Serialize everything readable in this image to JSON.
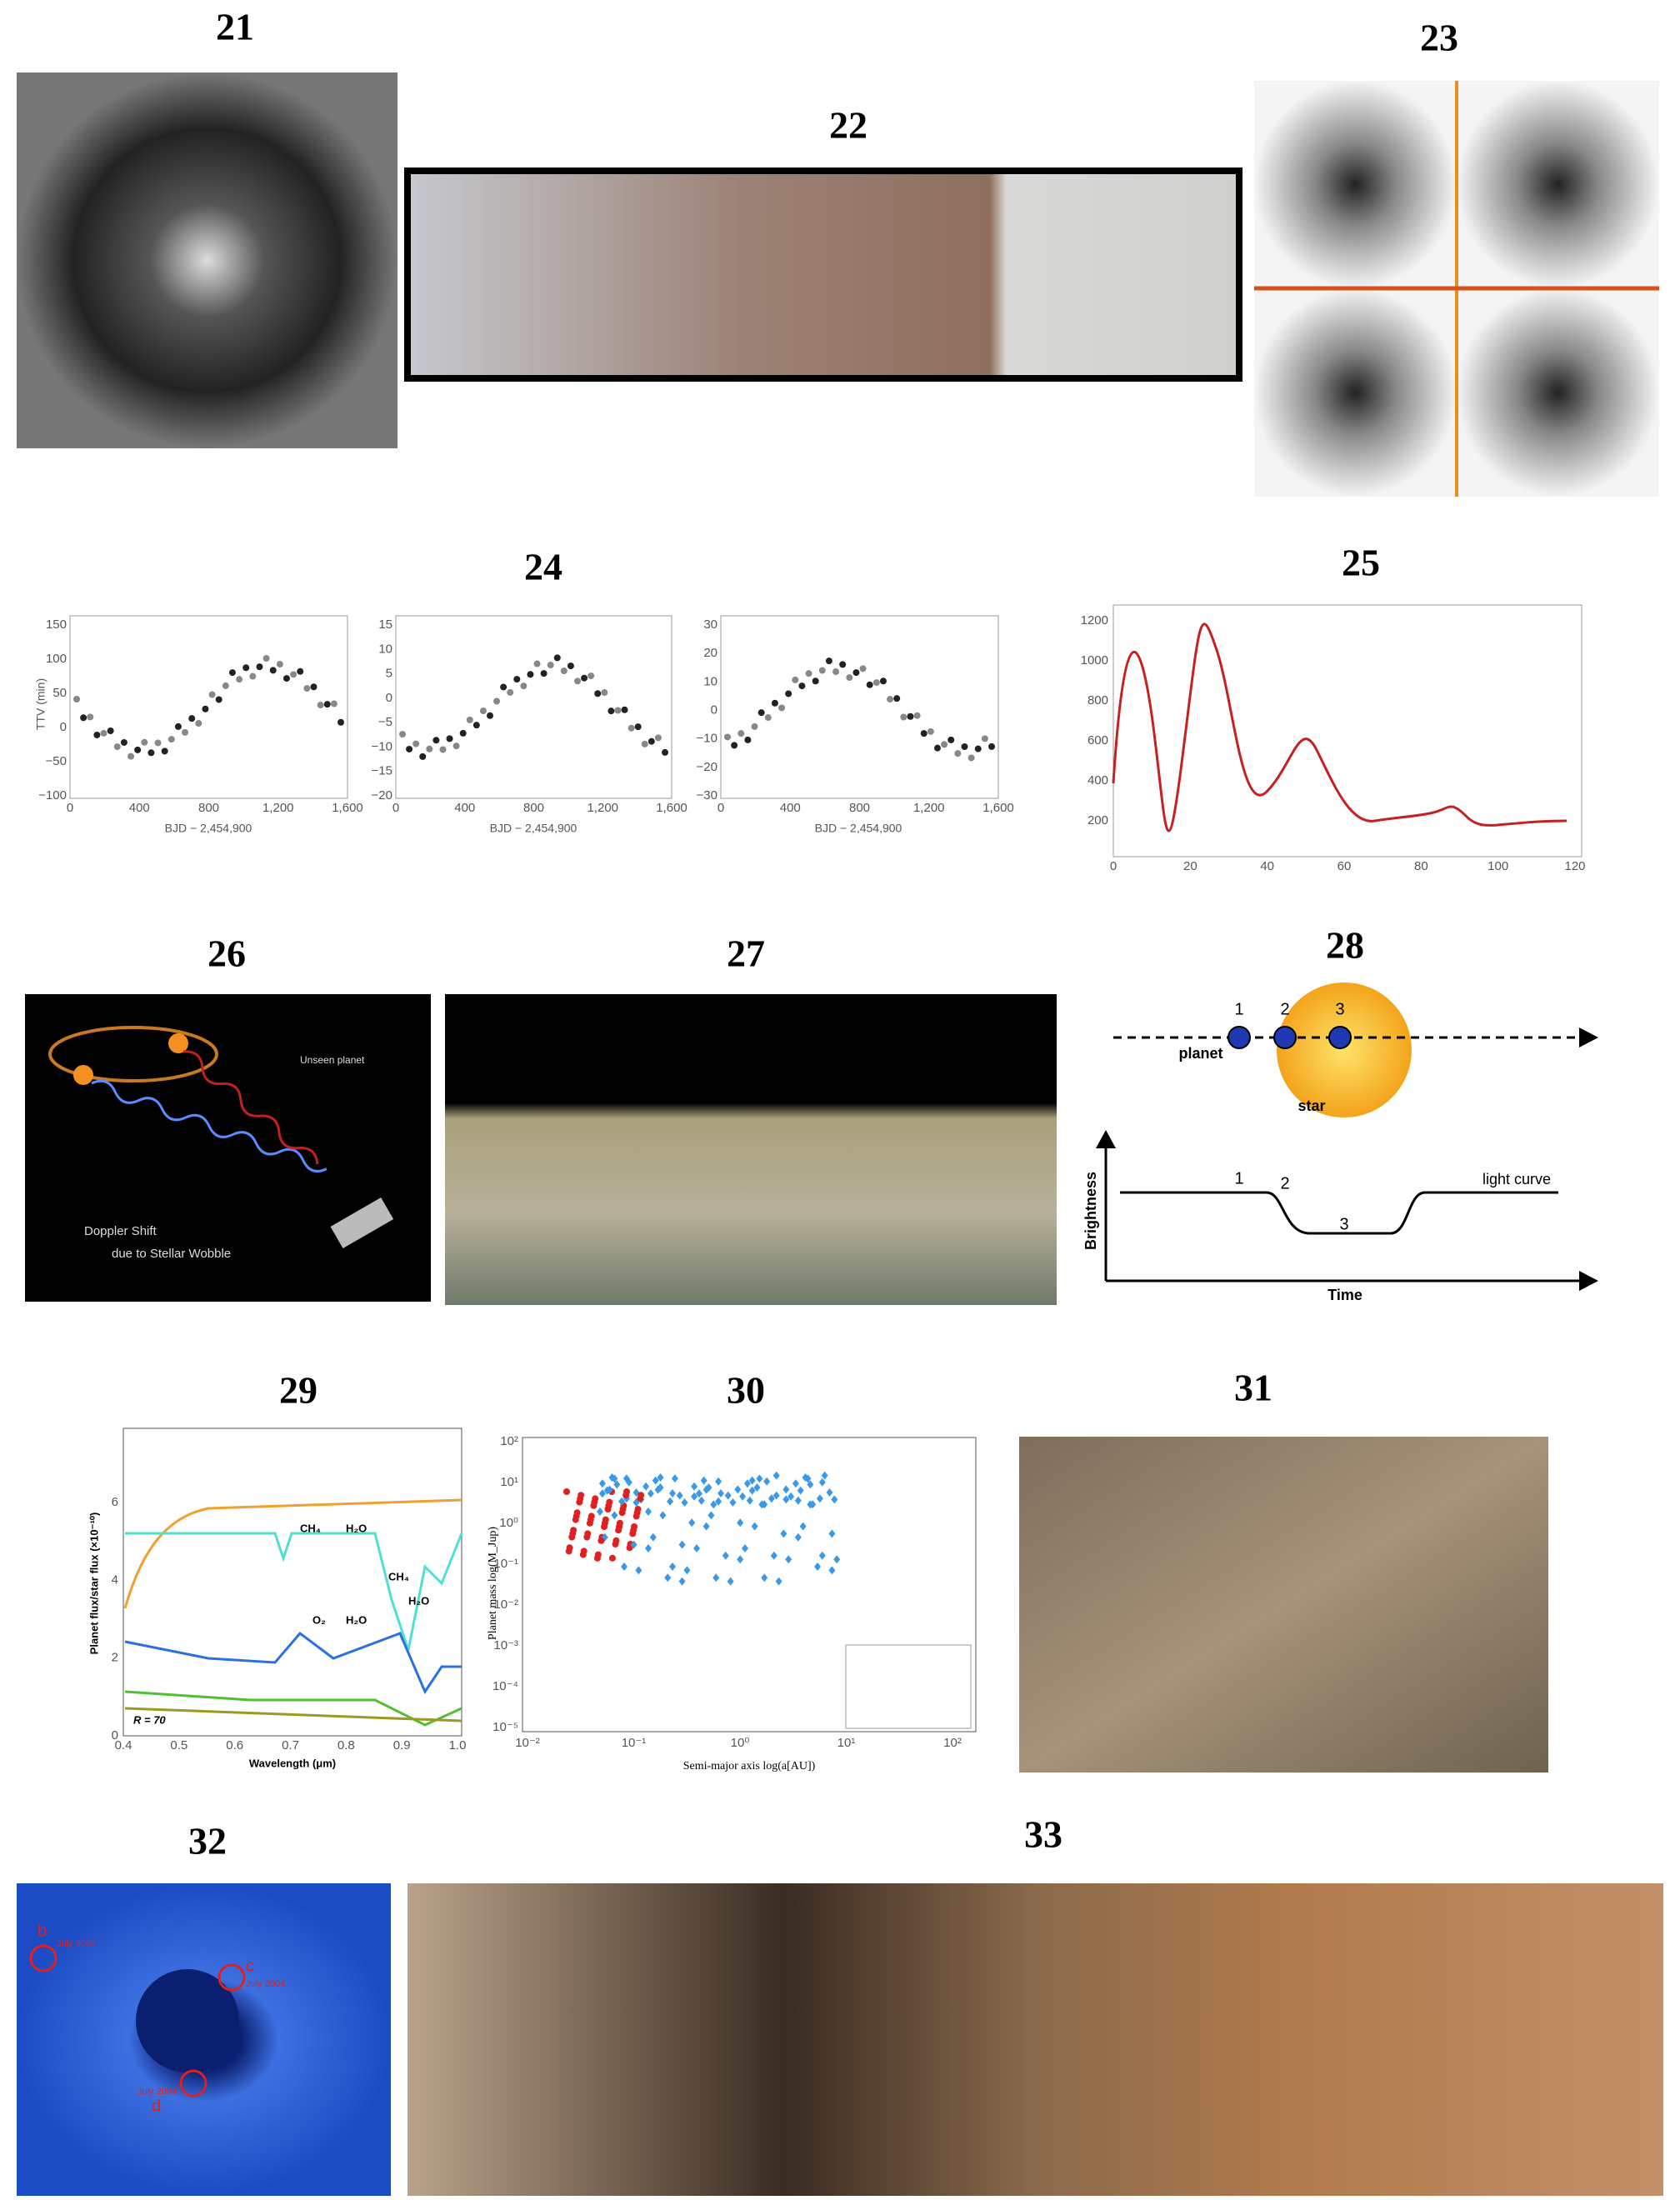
{
  "panels": [
    {
      "label": "21"
    },
    {
      "label": "22"
    },
    {
      "label": "23"
    },
    {
      "label": "24",
      "y_axis": "TTV (min)",
      "x_axis": "BJD − 2,454,900",
      "subplots": [
        {
          "yticks": [
            "150",
            "100",
            "50",
            "0",
            "−50",
            "−100"
          ],
          "xticks": [
            "0",
            "400",
            "800",
            "1,200",
            "1,600"
          ]
        },
        {
          "yticks": [
            "15",
            "10",
            "5",
            "0",
            "−5",
            "−10",
            "−15",
            "−20"
          ],
          "xticks": [
            "0",
            "400",
            "800",
            "1,200",
            "1,600"
          ]
        },
        {
          "yticks": [
            "30",
            "20",
            "10",
            "0",
            "−10",
            "−20",
            "−30"
          ],
          "xticks": [
            "0",
            "400",
            "800",
            "1,200",
            "1,600"
          ]
        }
      ]
    },
    {
      "label": "25",
      "yticks": [
        "1200",
        "1000",
        "800",
        "600",
        "400",
        "200"
      ],
      "xticks": [
        "0",
        "20",
        "40",
        "60",
        "80",
        "100",
        "120"
      ]
    },
    {
      "label": "26",
      "annotations": [
        "Unseen planet",
        "Doppler Shift",
        "due to Stellar Wobble"
      ]
    },
    {
      "label": "27"
    },
    {
      "label": "28",
      "points": [
        "1",
        "2",
        "3"
      ],
      "texts": [
        "planet",
        "star",
        "light curve",
        "Brightness",
        "Time"
      ],
      "curve_points": [
        "1",
        "2",
        "3"
      ]
    },
    {
      "label": "29",
      "y_axis": "Planet flux/star flux (×10⁻¹⁰)",
      "x_axis": "Wavelength (μm)",
      "xticks": [
        "0.4",
        "0.5",
        "0.6",
        "0.7",
        "0.8",
        "0.9",
        "1.0"
      ],
      "yticks": [
        "0",
        "2",
        "4",
        "6"
      ],
      "annotations": [
        "CH₄",
        "H₂O",
        "CH₄",
        "H₂O",
        "O₂",
        "H₂O",
        "R = 70"
      ]
    },
    {
      "label": "30",
      "y_axis": "Planet mass log(M_Jup)",
      "x_axis": "Semi-major axis log(a[AU])",
      "xticks": [
        "10⁻²",
        "10⁻¹",
        "10⁰",
        "10¹",
        "10²"
      ],
      "yticks": [
        "10²",
        "10¹",
        "10⁰",
        "10⁻¹",
        "10⁻²",
        "10⁻³",
        "10⁻⁴",
        "10⁻⁵"
      ]
    },
    {
      "label": "31"
    },
    {
      "label": "32",
      "annotations": [
        "b",
        "July 2004",
        "c",
        "July 2004",
        "d",
        "July 2004"
      ]
    },
    {
      "label": "33"
    }
  ]
}
